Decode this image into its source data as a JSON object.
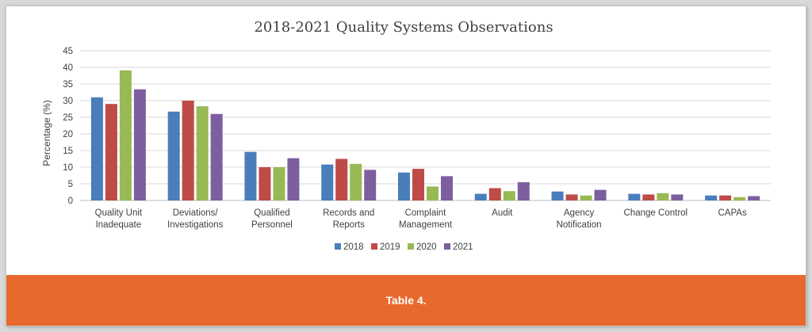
{
  "caption": "Table 4.",
  "chart_data": {
    "type": "bar",
    "title": "2018-2021 Quality Systems Observations",
    "ylabel": "Percentage (%)",
    "xlabel": "",
    "ylim": [
      0,
      45
    ],
    "yticks": [
      0,
      5,
      10,
      15,
      20,
      25,
      30,
      35,
      40,
      45
    ],
    "grid": true,
    "legend_position": "bottom",
    "categories": [
      [
        "Quality Unit",
        "Inadequate"
      ],
      [
        "Deviations/",
        "Investigations"
      ],
      [
        "Qualified",
        "Personnel"
      ],
      [
        "Records and",
        "Reports"
      ],
      [
        "Complaint",
        "Management"
      ],
      [
        "Audit"
      ],
      [
        "Agency",
        "Notification"
      ],
      [
        "Change Control"
      ],
      [
        "CAPAs"
      ]
    ],
    "series": [
      {
        "name": "2018",
        "color": "#4a7ebb",
        "values": [
          31,
          26.7,
          14.6,
          10.8,
          8.4,
          2,
          2.7,
          2,
          1.5
        ]
      },
      {
        "name": "2019",
        "color": "#be4b48",
        "values": [
          29,
          30,
          10,
          12.5,
          9.5,
          3.7,
          1.8,
          1.8,
          1.5
        ]
      },
      {
        "name": "2020",
        "color": "#98b954",
        "values": [
          39.1,
          28.3,
          10,
          11,
          4.2,
          2.8,
          1.5,
          2.2,
          1
        ]
      },
      {
        "name": "2021",
        "color": "#7d5fa0",
        "values": [
          33.4,
          26,
          12.7,
          9.2,
          7.3,
          5.5,
          3.2,
          1.8,
          1.3
        ]
      }
    ]
  }
}
